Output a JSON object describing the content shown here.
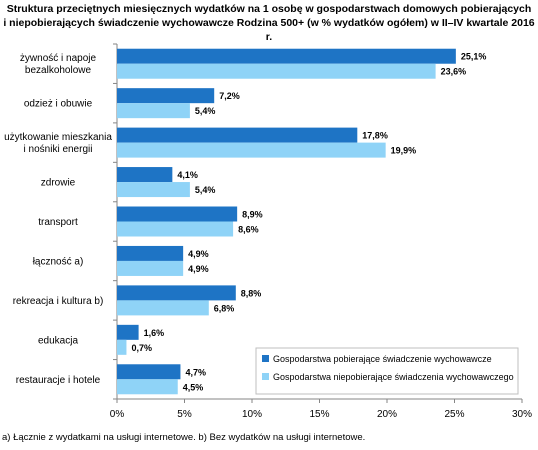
{
  "chart_data": {
    "type": "bar",
    "orientation": "horizontal",
    "title": "Struktura przeciętnych miesięcznych wydatków na 1 osobę w gospodarstwach domowych pobierających\ni niepobierających świadczenie wychowawcze Rodzina 500+ (w % wydatków ogółem) w  II–IV kwartale 2016 r.",
    "categories": [
      "żywność i napoje\nbezalkoholowe",
      "odzież i obuwie",
      "użytkowanie mieszkania\ni nośniki energii",
      "zdrowie",
      "transport",
      "łączność a)",
      "rekreacja i kultura b)",
      "edukacja",
      "restauracje i hotele"
    ],
    "series": [
      {
        "name": "Gospodarstwa pobierające świadczenie wychowawcze",
        "color": "#1e74c5",
        "values": [
          25.1,
          7.2,
          17.8,
          4.1,
          8.9,
          4.9,
          8.8,
          1.6,
          4.7
        ],
        "labels": [
          "25,1%",
          "7,2%",
          "17,8%",
          "4,1%",
          "8,9%",
          "4,9%",
          "8,8%",
          "1,6%",
          "4,7%"
        ]
      },
      {
        "name": "Gospodarstwa niepobierające świadczenia wychowawczego",
        "color": "#8fd3f7",
        "values": [
          23.6,
          5.4,
          19.9,
          5.4,
          8.6,
          4.9,
          6.8,
          0.7,
          4.5
        ],
        "labels": [
          "23,6%",
          "5,4%",
          "19,9%",
          "5,4%",
          "8,6%",
          "4,9%",
          "6,8%",
          "0,7%",
          "4,5%"
        ]
      }
    ],
    "xlim": [
      0,
      30
    ],
    "xticks": [
      0,
      5,
      10,
      15,
      20,
      25,
      30
    ],
    "xtick_labels": [
      "0%",
      "5%",
      "10%",
      "15%",
      "20%",
      "25%",
      "30%"
    ],
    "xlabel": "",
    "ylabel": "",
    "grid": false,
    "legend_position": "bottom-right",
    "footnote": "a) Łącznie z wydatkami na usługi internetowe. b) Bez wydatków na usługi internetowe."
  }
}
